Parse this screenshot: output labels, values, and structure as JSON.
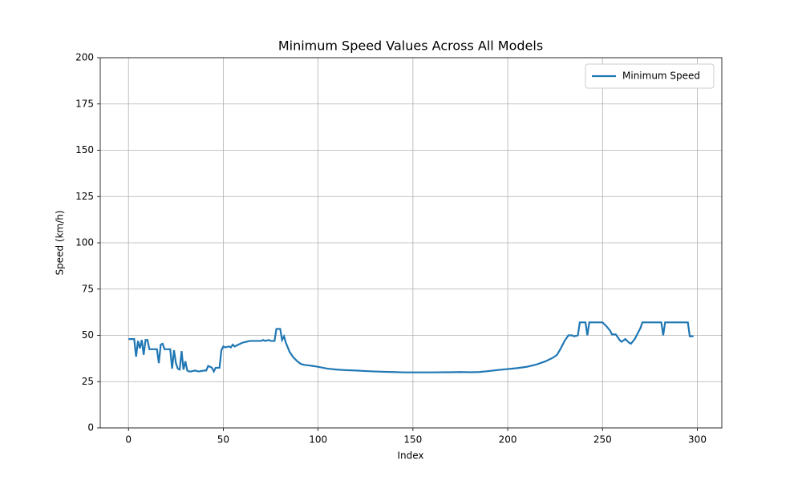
{
  "chart_data": {
    "type": "line",
    "title": "Minimum Speed Values Across All Models",
    "xlabel": "Index",
    "ylabel": "Speed (km/h)",
    "x": [
      0,
      1,
      2,
      3,
      4,
      5,
      6,
      7,
      8,
      9,
      10,
      11,
      12,
      15,
      16,
      17,
      18,
      19,
      20,
      22,
      23,
      24,
      25,
      26,
      27,
      28,
      29,
      30,
      31,
      32,
      33,
      35,
      37,
      40,
      41,
      42,
      43,
      44,
      45,
      46,
      48,
      49,
      50,
      51,
      53,
      54,
      55,
      56,
      58,
      60,
      62,
      64,
      66,
      68,
      70,
      71,
      72,
      74,
      75,
      77,
      78,
      80,
      81,
      82,
      83,
      85,
      87,
      89,
      91,
      93,
      95,
      97,
      99,
      100,
      105,
      110,
      115,
      120,
      125,
      130,
      135,
      140,
      145,
      150,
      160,
      170,
      175,
      180,
      185,
      190,
      195,
      200,
      205,
      210,
      215,
      220,
      224,
      226,
      228,
      230,
      232,
      234,
      235,
      237,
      238,
      241,
      242,
      243,
      250,
      252,
      254,
      255,
      257,
      259,
      260,
      262,
      264,
      265,
      267,
      269,
      270,
      271,
      281,
      282,
      283,
      295,
      296,
      298
    ],
    "series": [
      {
        "name": "Minimum Speed",
        "color": "#1f77b4",
        "values": [
          48,
          48,
          48,
          48,
          38.5,
          47,
          43,
          47.5,
          39.5,
          47.5,
          47.5,
          42.5,
          42.5,
          42.5,
          35,
          45,
          45.5,
          42.5,
          42.5,
          42.5,
          32,
          42,
          35,
          32,
          31.5,
          41.5,
          31.5,
          36,
          31,
          30.5,
          30.5,
          31,
          30.5,
          31,
          31,
          33.5,
          33,
          32.5,
          30.5,
          32.5,
          32.5,
          42,
          44,
          43.5,
          44,
          43.5,
          45,
          44,
          45,
          46,
          46.5,
          47,
          47,
          47,
          47,
          47.5,
          47,
          47.5,
          47,
          47,
          53.5,
          53.5,
          47.5,
          49.5,
          46,
          41,
          38,
          36,
          34.5,
          34,
          33.8,
          33.5,
          33.2,
          33,
          32,
          31.5,
          31.2,
          31,
          30.7,
          30.5,
          30.3,
          30.2,
          30,
          30,
          30,
          30.1,
          30.2,
          30.1,
          30.2,
          30.7,
          31.3,
          31.8,
          32.3,
          33,
          34.2,
          36,
          38,
          39.5,
          43,
          47,
          50,
          50,
          49.5,
          50,
          57,
          57,
          50,
          57,
          57,
          55,
          52.5,
          50.5,
          50.5,
          47.5,
          46.5,
          48,
          46,
          45.5,
          48,
          52,
          54,
          57,
          57,
          50,
          57,
          57,
          49.5,
          49.5
        ]
      }
    ],
    "xlim": [
      -14.9,
      312.9
    ],
    "ylim": [
      0,
      200
    ],
    "xticks": [
      0,
      50,
      100,
      150,
      200,
      250,
      300
    ],
    "yticks": [
      0,
      25,
      50,
      75,
      100,
      125,
      150,
      175,
      200
    ],
    "grid": true,
    "legend": "upper right"
  }
}
